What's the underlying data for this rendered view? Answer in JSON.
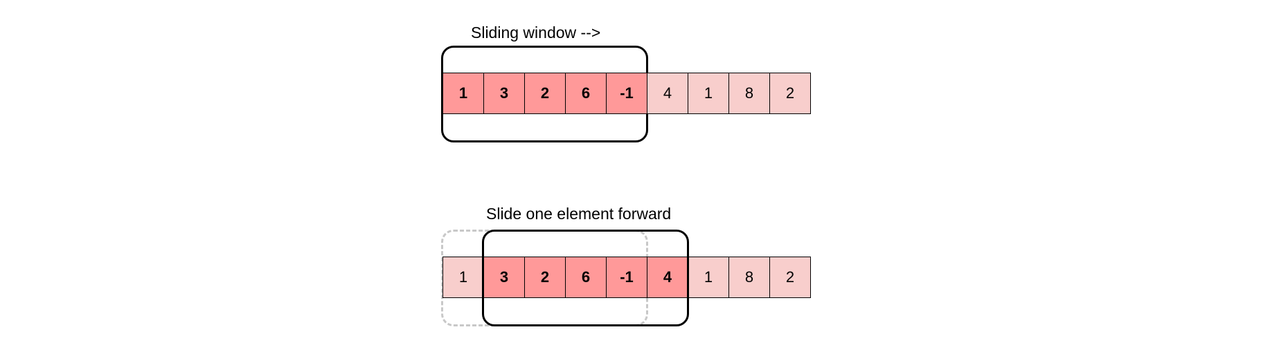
{
  "colors": {
    "highlight": "#ff9999",
    "base": "#f8cecc",
    "previous_window_border": "#c8c8c8",
    "window_border": "#000000"
  },
  "top": {
    "caption": "Sliding window -->",
    "cells": [
      {
        "value": "1",
        "active": true
      },
      {
        "value": "3",
        "active": true
      },
      {
        "value": "2",
        "active": true
      },
      {
        "value": "6",
        "active": true
      },
      {
        "value": "-1",
        "active": true
      },
      {
        "value": "4",
        "active": false
      },
      {
        "value": "1",
        "active": false
      },
      {
        "value": "8",
        "active": false
      },
      {
        "value": "2",
        "active": false
      }
    ]
  },
  "bottom": {
    "caption": "Slide one element forward",
    "cells": [
      {
        "value": "1",
        "active": false
      },
      {
        "value": "3",
        "active": true
      },
      {
        "value": "2",
        "active": true
      },
      {
        "value": "6",
        "active": true
      },
      {
        "value": "-1",
        "active": true
      },
      {
        "value": "4",
        "active": true
      },
      {
        "value": "1",
        "active": false
      },
      {
        "value": "8",
        "active": false
      },
      {
        "value": "2",
        "active": false
      }
    ]
  }
}
